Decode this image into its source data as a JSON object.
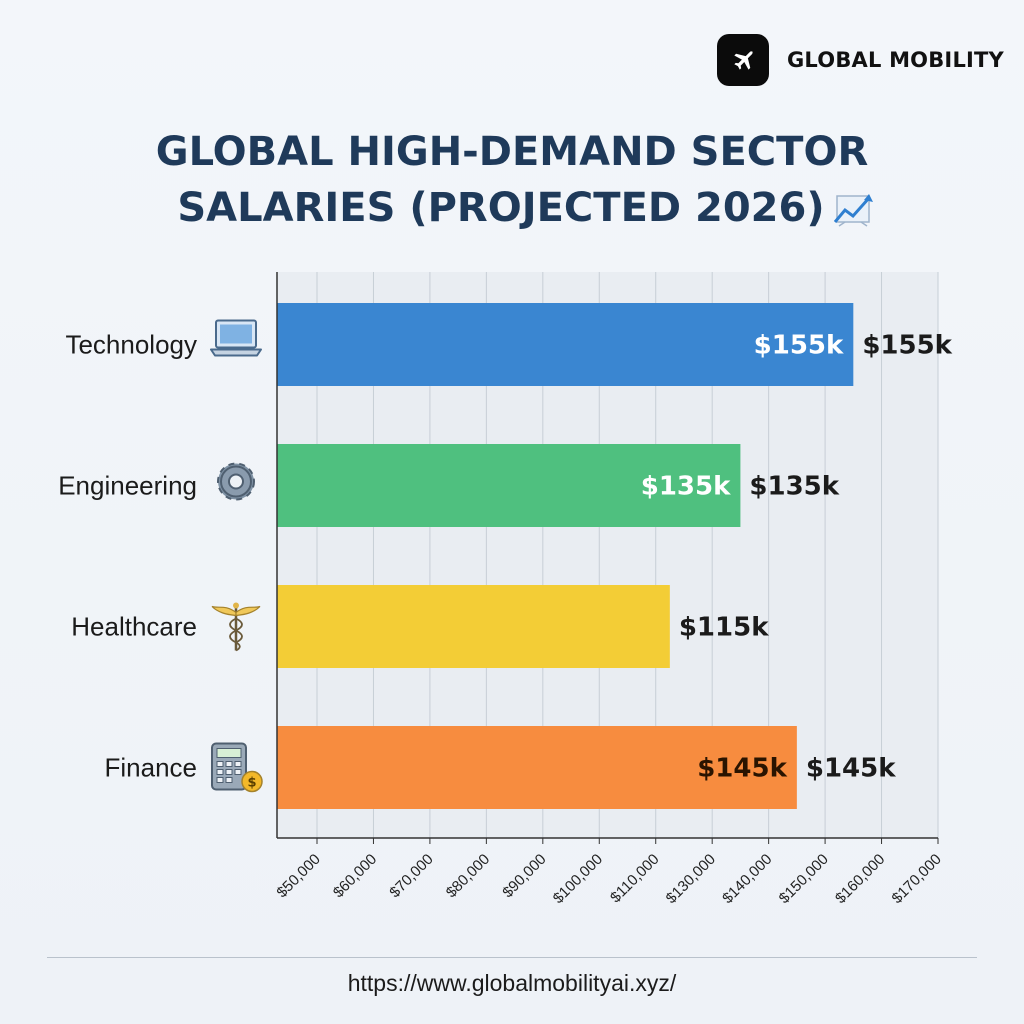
{
  "brand": {
    "name": "GLOBAL MOBILITY",
    "logo_icon": "airplane-icon"
  },
  "title_line1": "GLOBAL HIGH-DEMAND SECTOR",
  "title_line2": "SALARIES (PROJECTED 2026)",
  "title_icon": "trend-up-chart-icon",
  "chart_data": {
    "type": "bar",
    "orientation": "horizontal",
    "title": "GLOBAL HIGH-DEMAND SECTOR SALARIES (PROJECTED 2026)",
    "categories": [
      "Technology",
      "Engineering",
      "Healthcare",
      "Finance"
    ],
    "values": [
      155000,
      135000,
      115000,
      145000
    ],
    "data_labels": [
      "$155k",
      "$135k",
      "$115k",
      "$145k"
    ],
    "inside_labels": [
      "$155k",
      "$135k",
      "",
      "$145k"
    ],
    "category_icons": [
      "laptop-icon",
      "gear-icon",
      "caduceus-icon",
      "calculator-icon"
    ],
    "colors": [
      "#3a86d1",
      "#4fc07f",
      "#f3cd36",
      "#f78c3f"
    ],
    "x_ticks": [
      50000,
      60000,
      70000,
      80000,
      90000,
      100000,
      110000,
      130000,
      140000,
      150000,
      160000,
      170000
    ],
    "x_tick_labels": [
      "$50,000",
      "$60,000",
      "$70,000",
      "$80,000",
      "$90,000",
      "$100,000",
      "$110,000",
      "$130,000",
      "$140,000",
      "$150,000",
      "$160,000",
      "$170,000"
    ],
    "grid": true
  },
  "footer": {
    "url": "https://www.globalmobilityai.xyz/"
  }
}
